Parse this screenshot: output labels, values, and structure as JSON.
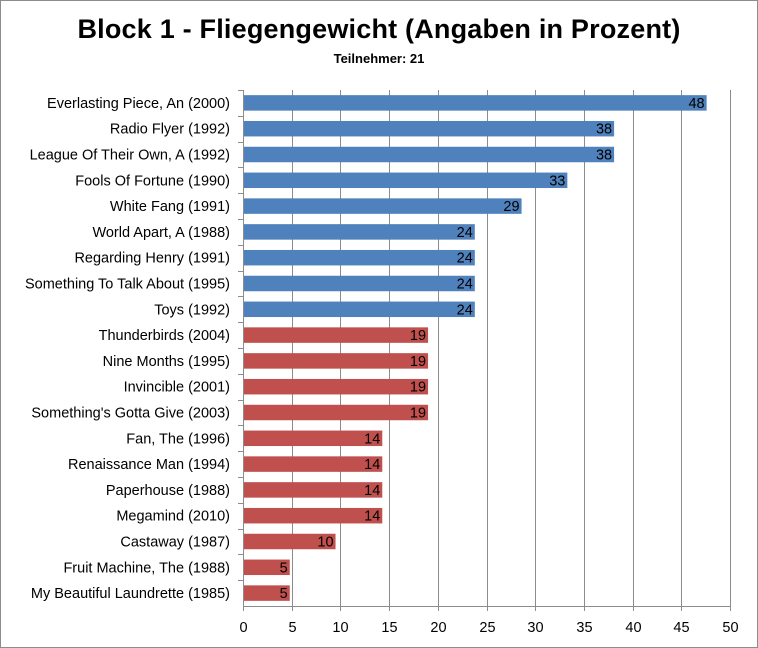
{
  "chart_data": {
    "type": "bar",
    "orientation": "horizontal",
    "title": "Block 1 - Fliegengewicht (Angaben in Prozent)",
    "subtitle": "Teilnehmer: 21",
    "xlim": [
      0,
      50
    ],
    "xticks": [
      "0",
      "5",
      "10",
      "15",
      "20",
      "25",
      "30",
      "35",
      "40",
      "45",
      "50"
    ],
    "grid": true,
    "legend": "none",
    "colors": {
      "blue": "#4f81bd",
      "red": "#c0504d",
      "grid": "#8c8c8c"
    },
    "categories": [
      "Everlasting Piece, An (2000)",
      "Radio Flyer (1992)",
      "League Of Their Own, A (1992)",
      "Fools Of Fortune (1990)",
      "White Fang (1991)",
      "World Apart, A (1988)",
      "Regarding Henry (1991)",
      "Something To Talk About (1995)",
      "Toys (1992)",
      "Thunderbirds (2004)",
      "Nine Months (1995)",
      "Invincible (2001)",
      "Something's Gotta Give (2003)",
      "Fan, The (1996)",
      "Renaissance Man (1994)",
      "Paperhouse (1988)",
      "Megamind (2010)",
      "Castaway (1987)",
      "Fruit Machine, The (1988)",
      "My Beautiful Laundrette (1985)"
    ],
    "values": [
      47.6,
      38.1,
      38.1,
      33.3,
      28.6,
      23.8,
      23.8,
      23.8,
      23.8,
      19.0,
      19.0,
      19.0,
      19.0,
      14.3,
      14.3,
      14.3,
      14.3,
      9.5,
      4.8,
      4.8
    ],
    "labels": [
      "48",
      "38",
      "38",
      "33",
      "29",
      "24",
      "24",
      "24",
      "24",
      "19",
      "19",
      "19",
      "19",
      "14",
      "14",
      "14",
      "14",
      "10",
      "5",
      "5"
    ],
    "bar_colors": [
      "blue",
      "blue",
      "blue",
      "blue",
      "blue",
      "blue",
      "blue",
      "blue",
      "blue",
      "red",
      "red",
      "red",
      "red",
      "red",
      "red",
      "red",
      "red",
      "red",
      "red",
      "red"
    ]
  }
}
